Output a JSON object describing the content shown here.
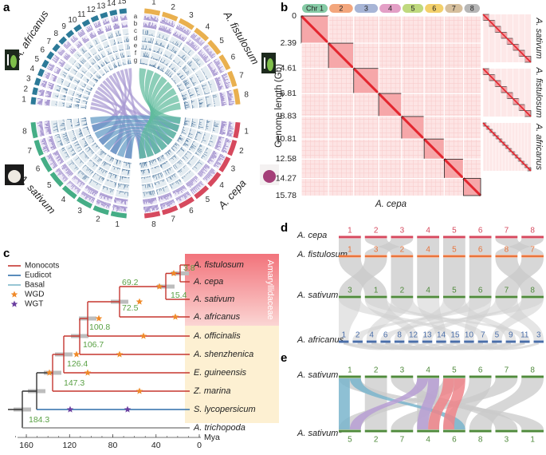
{
  "panel_a": {
    "letter": "a",
    "species": {
      "africanus": "A. africanus",
      "fistulosum": "A. fistulosum",
      "cepa": "A. cepa",
      "sativum": "A. sativum"
    },
    "tracks": [
      "a",
      "b",
      "c",
      "d",
      "e",
      "f",
      "g"
    ],
    "chromosomes": {
      "fistulosum": [
        1,
        2,
        3,
        4,
        5,
        6,
        7,
        8
      ],
      "cepa": [
        1,
        2,
        3,
        4,
        5,
        6,
        7,
        8
      ],
      "sativum": [
        1,
        2,
        3,
        4,
        5,
        6,
        7,
        8
      ],
      "africanus": [
        1,
        2,
        3,
        4,
        5,
        6,
        7,
        8,
        9,
        10,
        11,
        12,
        13,
        14,
        15
      ]
    }
  },
  "panel_b": {
    "letter": "b",
    "y_label": "Genome length (Gb)",
    "x_label": "A. cepa",
    "chromosomes": [
      "Chr 1",
      2,
      3,
      4,
      5,
      6,
      7,
      8
    ],
    "y_ticks": [
      0,
      2.39,
      4.61,
      6.81,
      8.83,
      10.81,
      12.58,
      14.27,
      15.78
    ],
    "insets": [
      "A. sativum",
      "A. fistulosum",
      "A. africanus"
    ]
  },
  "panel_c": {
    "letter": "c",
    "group": "Amaryllidaceae",
    "legend": [
      "Monocots",
      "Eudicot",
      "Basal",
      "WGD",
      "WGT"
    ],
    "taxa": [
      "A. fistulosum",
      "A. cepa",
      "A. sativum",
      "A. africanus",
      "A. officinalis",
      "A. shenzhenica",
      "E. guineensis",
      "Z. marina",
      "S. lycopersicum",
      "A. trichopoda"
    ],
    "node_ages": [
      3.8,
      15.4,
      69.2,
      72.5,
      100.8,
      106.7,
      126.4,
      147.3,
      184.3
    ],
    "axis_ticks": [
      160,
      120,
      80,
      40,
      0
    ],
    "axis_unit": "Mya"
  },
  "panel_d": {
    "letter": "d",
    "rows": [
      {
        "name": "A. cepa",
        "chromosomes": [
          1,
          2,
          3,
          4,
          5,
          6,
          7,
          8
        ]
      },
      {
        "name": "A. fistulosum",
        "chromosomes": [
          1,
          3,
          2,
          4,
          5,
          6,
          8,
          7
        ]
      },
      {
        "name": "A. sativum",
        "chromosomes": [
          3,
          1,
          2,
          4,
          5,
          6,
          7,
          8
        ]
      },
      {
        "name": "A. africanus",
        "chromosomes": [
          1,
          2,
          4,
          6,
          8,
          12,
          13,
          14,
          15,
          10,
          7,
          5,
          9,
          11,
          3
        ]
      }
    ]
  },
  "panel_e": {
    "letter": "e",
    "rows": [
      {
        "name": "A. sativum",
        "chromosomes": [
          1,
          2,
          3,
          4,
          5,
          6,
          7,
          8
        ]
      },
      {
        "name": "A. sativum*",
        "chromosomes": [
          5,
          2,
          7,
          4,
          6,
          8,
          3,
          1
        ]
      }
    ]
  }
}
